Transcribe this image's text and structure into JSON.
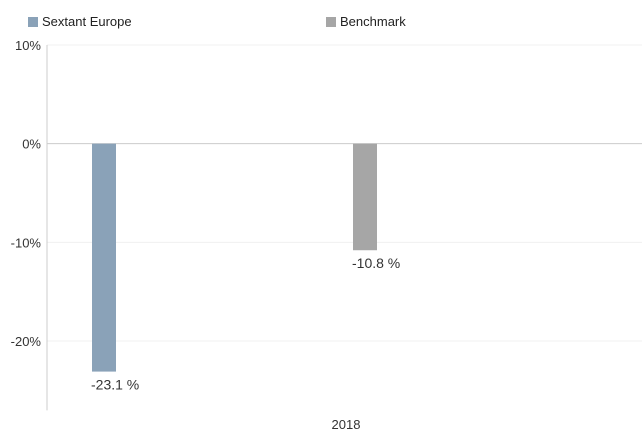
{
  "chart_data": {
    "type": "bar",
    "categories": [
      "2018"
    ],
    "series": [
      {
        "name": "Sextant Europe",
        "color": "#8aa2b8",
        "values": [
          -23.1
        ]
      },
      {
        "name": "Benchmark",
        "color": "#a6a6a6",
        "values": [
          -10.8
        ]
      }
    ],
    "data_labels": [
      "-23.1 %",
      "-10.8 %"
    ],
    "yticks": [
      10,
      0,
      -10,
      -20
    ],
    "ytick_labels": [
      "10%",
      "0%",
      "-10%",
      "-20%"
    ],
    "ylim": [
      -25,
      10
    ],
    "grid": true,
    "legend_position": "top"
  }
}
